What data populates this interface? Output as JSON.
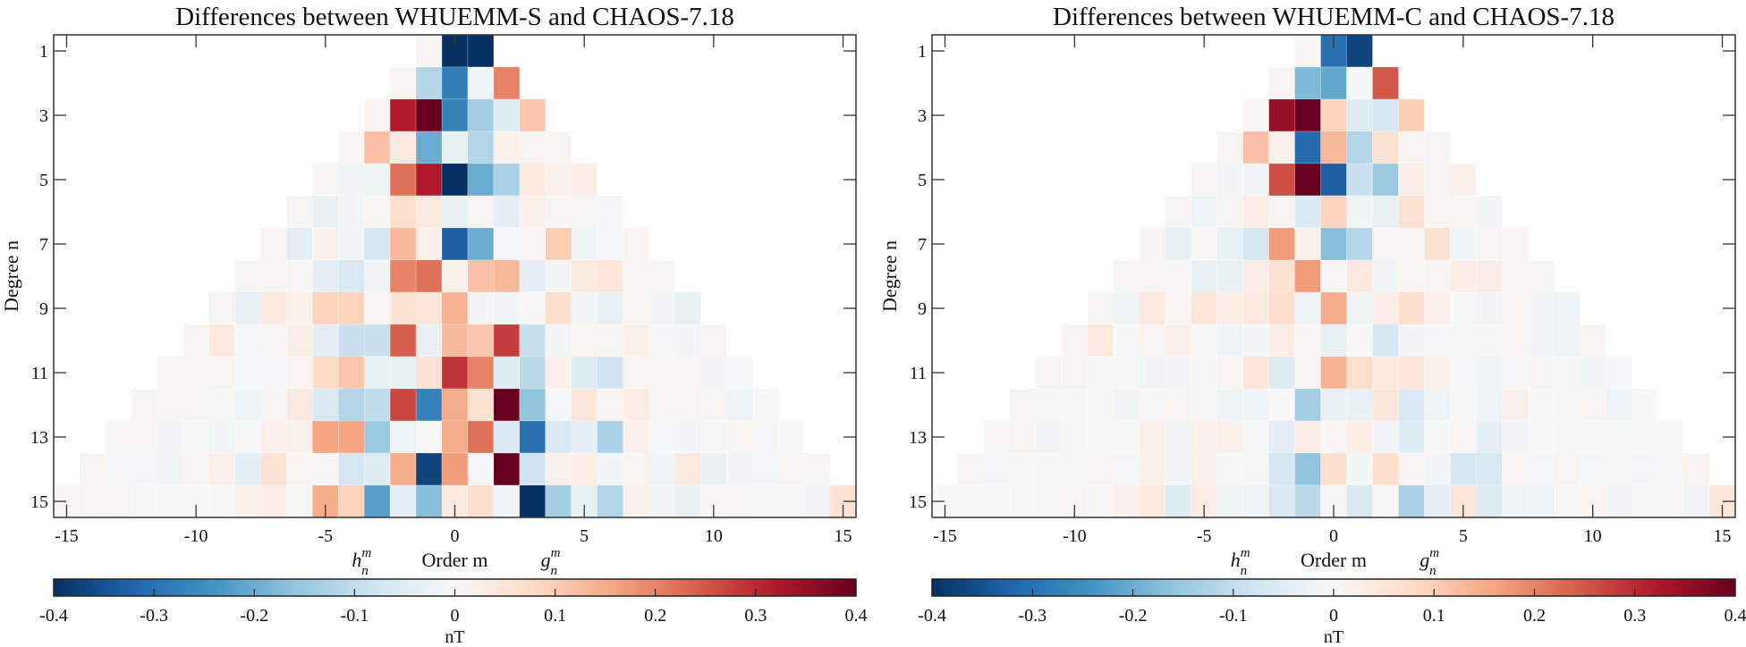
{
  "chart_data": [
    {
      "type": "heatmap",
      "title": "Differences between WHUEMM-S and CHAOS-7.18",
      "xlabel": "Order m",
      "xlabel_left": {
        "base": "h",
        "sub": "n",
        "sup": "m"
      },
      "xlabel_right": {
        "base": "g",
        "sub": "n",
        "sup": "m"
      },
      "ylabel": "Degree n",
      "xlim": [
        -15.5,
        15.5
      ],
      "ylim": [
        15.5,
        0.5
      ],
      "y_reversed": true,
      "xticks": [
        "-15",
        "-10",
        "-5",
        "0",
        "5",
        "10",
        "15"
      ],
      "yticks": [
        "1",
        "3",
        "5",
        "7",
        "9",
        "11",
        "13",
        "15"
      ],
      "colorbar": {
        "label": "nT",
        "range": [
          -0.4,
          0.4
        ],
        "colormap": "RdBu (reversed): blue negative, red positive",
        "ticks": [
          "-0.4",
          "-0.3",
          "-0.2",
          "-0.1",
          "0",
          "0.1",
          "0.2",
          "0.3",
          "0.4"
        ],
        "placement": "bottom"
      },
      "rows": [
        {
          "n": 1,
          "values": [
            0.01,
            -0.4,
            -0.4
          ]
        },
        {
          "n": 2,
          "values": [
            0.01,
            -0.12,
            -0.28,
            -0.02,
            0.2
          ]
        },
        {
          "n": 3,
          "values": [
            0.01,
            0.32,
            0.4,
            -0.27,
            -0.14,
            -0.05,
            0.11
          ]
        },
        {
          "n": 4,
          "values": [
            0.01,
            0.12,
            0.04,
            -0.2,
            -0.03,
            -0.12,
            0.02,
            0.01,
            0.005
          ]
        },
        {
          "n": 5,
          "values": [
            0.005,
            -0.01,
            -0.02,
            0.22,
            0.32,
            -0.4,
            -0.2,
            -0.13,
            0.04,
            0.02,
            0.03
          ]
        },
        {
          "n": 6,
          "values": [
            0.005,
            -0.03,
            -0.01,
            0.01,
            0.07,
            0.04,
            -0.03,
            0.01,
            -0.04,
            0.02,
            0.005,
            0.005,
            -0.005
          ]
        },
        {
          "n": 7,
          "values": [
            0.005,
            -0.04,
            0.02,
            -0.01,
            -0.07,
            0.13,
            0.02,
            -0.33,
            -0.2,
            -0.005,
            0.005,
            0.1,
            -0.02,
            -0.005,
            0.01
          ]
        },
        {
          "n": 8,
          "values": [
            0.005,
            0.005,
            0.005,
            -0.04,
            -0.06,
            -0.01,
            0.2,
            0.22,
            0.02,
            0.12,
            0.13,
            -0.04,
            -0.01,
            0.04,
            0.05,
            0.005,
            0.005
          ]
        },
        {
          "n": 9,
          "values": [
            0.005,
            -0.03,
            0.04,
            0.02,
            0.09,
            0.09,
            0.01,
            0.06,
            0.05,
            0.14,
            -0.01,
            -0.01,
            0,
            0.07,
            -0.01,
            -0.03,
            0.01,
            -0.01,
            -0.03
          ]
        },
        {
          "n": 10,
          "values": [
            0.005,
            0.04,
            -0.005,
            0.005,
            0.03,
            -0.04,
            -0.09,
            -0.09,
            0.24,
            -0.03,
            0.13,
            0.11,
            0.28,
            -0.09,
            -0.01,
            0.01,
            0.01,
            0.02,
            -0.005,
            -0.01,
            0.01
          ]
        },
        {
          "n": 11,
          "values": [
            0.005,
            0.005,
            0.005,
            -0.005,
            -0.005,
            0.01,
            0.08,
            0.11,
            -0.03,
            -0.03,
            0.06,
            0.29,
            0.2,
            -0.05,
            -0.11,
            0.02,
            -0.05,
            -0.08,
            0.01,
            0.005,
            0.005,
            -0.01,
            -0.005
          ]
        },
        {
          "n": 12,
          "values": [
            0.005,
            0.005,
            0.005,
            0,
            -0.02,
            0.005,
            0.04,
            -0.06,
            -0.12,
            -0.1,
            0.27,
            -0.27,
            0.15,
            0.06,
            0.4,
            -0.16,
            -0.005,
            0.05,
            0.01,
            0.03,
            0.005,
            0.005,
            0.01,
            -0.02,
            0
          ]
        },
        {
          "n": 13,
          "values": [
            0.005,
            0.01,
            -0.01,
            0,
            -0.01,
            0,
            0.02,
            0.02,
            0.16,
            0.16,
            -0.15,
            -0.02,
            0,
            0.15,
            0.22,
            -0.06,
            -0.3,
            -0.06,
            -0.04,
            -0.13,
            0.02,
            -0.005,
            -0.01,
            0,
            0.01,
            -0.005,
            0
          ]
        },
        {
          "n": 14,
          "values": [
            0.005,
            -0.005,
            -0.005,
            -0.01,
            0.01,
            0.02,
            -0.04,
            0.06,
            0.01,
            0,
            -0.07,
            -0.05,
            0.15,
            -0.37,
            0.17,
            -0.005,
            0.4,
            -0.08,
            0.02,
            0.03,
            -0.01,
            0.01,
            -0.02,
            0.04,
            -0.03,
            -0.01,
            -0.005,
            0.005,
            0.005
          ]
        },
        {
          "n": 15,
          "values": [
            0.005,
            0.005,
            0.005,
            0,
            0,
            0,
            0,
            0.02,
            0.03,
            0,
            0.15,
            0.09,
            -0.22,
            -0.04,
            -0.17,
            0.04,
            0.07,
            -0.02,
            -0.4,
            -0.14,
            -0.03,
            -0.12,
            0.02,
            -0.01,
            -0.03,
            0.01,
            0.005,
            0,
            0,
            -0.01,
            0.06
          ]
        }
      ]
    },
    {
      "type": "heatmap",
      "title": "Differences between WHUEMM-C and CHAOS-7.18",
      "xlabel": "Order m",
      "xlabel_left": {
        "base": "h",
        "sub": "n",
        "sup": "m"
      },
      "xlabel_right": {
        "base": "g",
        "sub": "n",
        "sup": "m"
      },
      "ylabel": "Degree n",
      "xlim": [
        -15.5,
        15.5
      ],
      "ylim": [
        15.5,
        0.5
      ],
      "y_reversed": true,
      "xticks": [
        "-15",
        "-10",
        "-5",
        "0",
        "5",
        "10",
        "15"
      ],
      "yticks": [
        "1",
        "3",
        "5",
        "7",
        "9",
        "11",
        "13",
        "15"
      ],
      "colorbar": {
        "label": "nT",
        "range": [
          -0.4,
          0.4
        ],
        "colormap": "RdBu (reversed): blue negative, red positive",
        "ticks": [
          "-0.4",
          "-0.3",
          "-0.2",
          "-0.1",
          "0",
          "0.1",
          "0.2",
          "0.3",
          "0.4"
        ],
        "placement": "bottom"
      },
      "rows": [
        {
          "n": 1,
          "values": [
            0.005,
            -0.3,
            -0.37
          ]
        },
        {
          "n": 2,
          "values": [
            0.005,
            -0.18,
            -0.21,
            -0.005,
            0.25
          ]
        },
        {
          "n": 3,
          "values": [
            0.005,
            0.35,
            0.4,
            0.09,
            -0.05,
            -0.07,
            0.1
          ]
        },
        {
          "n": 4,
          "values": [
            0.005,
            0.12,
            0.02,
            -0.31,
            0.13,
            -0.12,
            0.06,
            0.01,
            0.005
          ]
        },
        {
          "n": 5,
          "values": [
            0.005,
            -0.01,
            -0.01,
            0.26,
            0.4,
            -0.33,
            -0.09,
            -0.15,
            0.03,
            0.005,
            0.02
          ]
        },
        {
          "n": 6,
          "values": [
            0.005,
            -0.02,
            0.005,
            0.03,
            0.01,
            -0.06,
            0.09,
            -0.01,
            -0.03,
            0.06,
            0.01,
            0.01,
            -0.01
          ]
        },
        {
          "n": 7,
          "values": [
            0.005,
            -0.03,
            0.01,
            -0.03,
            -0.07,
            0.17,
            0.02,
            -0.17,
            -0.12,
            0.005,
            0.01,
            0.06,
            -0.02,
            0.005,
            0.01
          ]
        },
        {
          "n": 8,
          "values": [
            0.005,
            0.005,
            0.005,
            -0.03,
            -0.03,
            0.03,
            0.06,
            0.17,
            0.005,
            0.04,
            -0.01,
            0.01,
            0.005,
            0.03,
            0.03,
            0.005,
            0.005
          ]
        },
        {
          "n": 9,
          "values": [
            0.005,
            -0.02,
            0.04,
            0.01,
            0.05,
            0.03,
            0.04,
            0.07,
            -0.02,
            0.15,
            -0.02,
            0.03,
            0.07,
            0.02,
            0,
            -0.01,
            0.01,
            -0.01,
            -0.02
          ]
        },
        {
          "n": 10,
          "values": [
            0.005,
            0.04,
            0,
            0.01,
            0.02,
            0,
            -0.02,
            -0.01,
            0.03,
            0.01,
            -0.03,
            0,
            -0.07,
            -0.01,
            -0.005,
            0,
            0,
            0.01,
            -0.01,
            -0.02,
            0.01
          ]
        },
        {
          "n": 11,
          "values": [
            0.005,
            0.005,
            0,
            0,
            -0.01,
            -0.01,
            0,
            0.01,
            0.05,
            -0.05,
            0.01,
            0.14,
            0.07,
            0.04,
            0.05,
            0.02,
            -0.005,
            -0.02,
            -0.005,
            0.005,
            0,
            -0.01,
            -0.005
          ]
        },
        {
          "n": 12,
          "values": [
            0.005,
            0,
            0,
            0,
            -0.01,
            0,
            0.01,
            0,
            -0.02,
            -0.02,
            0,
            -0.14,
            -0.03,
            -0.03,
            0.05,
            -0.06,
            -0.02,
            0,
            -0.02,
            0.02,
            0,
            0,
            0.01,
            -0.02,
            0
          ]
        },
        {
          "n": 13,
          "values": [
            0.005,
            0.01,
            -0.01,
            0,
            0,
            0,
            0.02,
            -0.01,
            0.02,
            0.02,
            0,
            -0.04,
            0.03,
            0.005,
            0.03,
            -0.01,
            -0.05,
            0,
            0.01,
            -0.04,
            -0.01,
            0,
            0,
            0,
            0,
            0,
            0
          ]
        },
        {
          "n": 14,
          "values": [
            0.005,
            -0.005,
            0,
            0,
            0,
            0.01,
            -0.005,
            0.02,
            -0.01,
            0.02,
            0,
            0,
            -0.07,
            -0.16,
            0.07,
            -0.01,
            0.07,
            0.01,
            -0.01,
            -0.07,
            -0.06,
            0.01,
            -0.005,
            0.01,
            -0.005,
            0,
            -0.005,
            0,
            0.01
          ]
        },
        {
          "n": 15,
          "values": [
            0,
            0,
            0,
            0,
            0,
            0.01,
            0,
            0.02,
            0.04,
            -0.05,
            0.03,
            -0.01,
            -0.02,
            -0.06,
            -0.11,
            0,
            -0.06,
            0,
            -0.13,
            -0.04,
            0.05,
            -0.05,
            -0.02,
            -0.02,
            0,
            0.01,
            -0.01,
            0,
            0,
            -0.01,
            0.05
          ]
        }
      ]
    }
  ]
}
